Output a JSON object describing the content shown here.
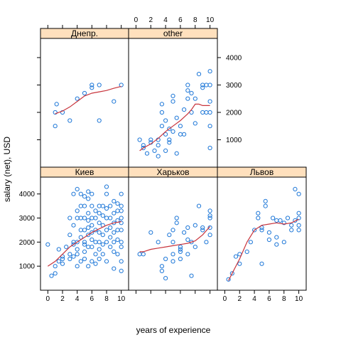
{
  "chart_data": {
    "type": "scatter",
    "layout": "lattice trellis, 3 columns x 2 rows",
    "xlabel": "years of experience",
    "ylabel": "salary (net), USD",
    "xlim": [
      -1,
      11
    ],
    "ylim": [
      0,
      4700
    ],
    "x_ticks": [
      0,
      2,
      4,
      6,
      8,
      10
    ],
    "y_ticks": [
      1000,
      2000,
      3000,
      4000
    ],
    "colors": {
      "points": "#1f78d8",
      "smooth": "#c8343c",
      "strip": "#ffe0bd"
    },
    "panels": [
      {
        "label": "Днепр.",
        "points": [
          [
            1,
            1500
          ],
          [
            1,
            2000
          ],
          [
            1.2,
            2300
          ],
          [
            2,
            2000
          ],
          [
            3,
            1700
          ],
          [
            4,
            2500
          ],
          [
            5,
            2700
          ],
          [
            6,
            2900
          ],
          [
            6,
            3000
          ],
          [
            7,
            3000
          ],
          [
            7,
            1700
          ],
          [
            9,
            2400
          ],
          [
            10,
            3000
          ]
        ],
        "smooth": [
          [
            1,
            1950
          ],
          [
            2,
            2050
          ],
          [
            3,
            2200
          ],
          [
            4,
            2400
          ],
          [
            5,
            2600
          ],
          [
            6,
            2700
          ],
          [
            7,
            2750
          ],
          [
            8,
            2800
          ],
          [
            9,
            2880
          ],
          [
            10,
            2950
          ]
        ]
      },
      {
        "label": "other",
        "points": [
          [
            0.5,
            1000
          ],
          [
            1,
            700
          ],
          [
            1,
            800
          ],
          [
            1.5,
            500
          ],
          [
            2,
            900
          ],
          [
            2,
            1000
          ],
          [
            2.5,
            600
          ],
          [
            3,
            400
          ],
          [
            3,
            800
          ],
          [
            3,
            1000
          ],
          [
            3.5,
            1500
          ],
          [
            3.5,
            2000
          ],
          [
            3.5,
            2300
          ],
          [
            4,
            600
          ],
          [
            4,
            1200
          ],
          [
            4,
            1700
          ],
          [
            4.5,
            900
          ],
          [
            4.5,
            1000
          ],
          [
            4.5,
            1400
          ],
          [
            5,
            1300
          ],
          [
            5,
            2600
          ],
          [
            5,
            2400
          ],
          [
            5.5,
            500
          ],
          [
            5.5,
            1800
          ],
          [
            6,
            1500
          ],
          [
            6,
            1200
          ],
          [
            6.5,
            1200
          ],
          [
            6.5,
            2100
          ],
          [
            7,
            2500
          ],
          [
            7,
            2800
          ],
          [
            7,
            3000
          ],
          [
            7.5,
            2000
          ],
          [
            7.5,
            2700
          ],
          [
            8,
            1600
          ],
          [
            8,
            2500
          ],
          [
            8.5,
            3400
          ],
          [
            9,
            3000
          ],
          [
            9,
            2900
          ],
          [
            9,
            2000
          ],
          [
            9.5,
            3000
          ],
          [
            9.5,
            2000
          ],
          [
            10,
            3500
          ],
          [
            10,
            3000
          ],
          [
            10,
            2400
          ],
          [
            10,
            2000
          ],
          [
            10,
            1500
          ],
          [
            10,
            700
          ]
        ],
        "smooth": [
          [
            0.5,
            600
          ],
          [
            1,
            700
          ],
          [
            2,
            850
          ],
          [
            3,
            1050
          ],
          [
            4,
            1300
          ],
          [
            5,
            1500
          ],
          [
            6,
            1700
          ],
          [
            7,
            1950
          ],
          [
            7.5,
            2100
          ],
          [
            8,
            2300
          ],
          [
            8.5,
            2300
          ],
          [
            9,
            2250
          ],
          [
            10,
            2250
          ]
        ]
      },
      {
        "label": "Киев",
        "points": [
          [
            0,
            1900
          ],
          [
            0.5,
            600
          ],
          [
            1,
            1000
          ],
          [
            1,
            700
          ],
          [
            1.5,
            1200
          ],
          [
            1.5,
            1700
          ],
          [
            2,
            1100
          ],
          [
            2,
            1300
          ],
          [
            2,
            1400
          ],
          [
            2.5,
            1800
          ],
          [
            3,
            1500
          ],
          [
            3,
            1300
          ],
          [
            3,
            2300
          ],
          [
            3,
            3000
          ],
          [
            3.5,
            2000
          ],
          [
            3.5,
            1400
          ],
          [
            3.5,
            1900
          ],
          [
            3.5,
            2700
          ],
          [
            3.5,
            4000
          ],
          [
            4,
            2000
          ],
          [
            4,
            1000
          ],
          [
            4,
            1500
          ],
          [
            4,
            4200
          ],
          [
            4,
            3000
          ],
          [
            4,
            3300
          ],
          [
            4,
            1700
          ],
          [
            4.5,
            3500
          ],
          [
            4.5,
            2200
          ],
          [
            4.5,
            2500
          ],
          [
            4.5,
            3000
          ],
          [
            4.5,
            1200
          ],
          [
            4.5,
            4000
          ],
          [
            5,
            1300
          ],
          [
            5,
            1600
          ],
          [
            5,
            2000
          ],
          [
            5,
            2500
          ],
          [
            5,
            3000
          ],
          [
            5,
            3500
          ],
          [
            5,
            3900
          ],
          [
            5,
            1900
          ],
          [
            5.5,
            1800
          ],
          [
            5.5,
            2300
          ],
          [
            5.5,
            2600
          ],
          [
            5.5,
            2900
          ],
          [
            5.5,
            3200
          ],
          [
            5.5,
            3800
          ],
          [
            5.5,
            4100
          ],
          [
            5.5,
            1000
          ],
          [
            6,
            1200
          ],
          [
            6,
            1800
          ],
          [
            6,
            2100
          ],
          [
            6,
            2400
          ],
          [
            6,
            2700
          ],
          [
            6,
            3000
          ],
          [
            6,
            3500
          ],
          [
            6,
            4000
          ],
          [
            6.5,
            1500
          ],
          [
            6.5,
            2000
          ],
          [
            6.5,
            2500
          ],
          [
            6.5,
            3000
          ],
          [
            6.5,
            3300
          ],
          [
            6.5,
            1100
          ],
          [
            7,
            2000
          ],
          [
            7,
            2400
          ],
          [
            7,
            2800
          ],
          [
            7,
            3200
          ],
          [
            7,
            3500
          ],
          [
            7,
            1300
          ],
          [
            7,
            1700
          ],
          [
            7.5,
            1900
          ],
          [
            7.5,
            2300
          ],
          [
            7.5,
            2700
          ],
          [
            7.5,
            3100
          ],
          [
            7.5,
            3500
          ],
          [
            7.5,
            1500
          ],
          [
            8,
            2000
          ],
          [
            8,
            2500
          ],
          [
            8,
            3000
          ],
          [
            8,
            3400
          ],
          [
            8,
            4000
          ],
          [
            8,
            4300
          ],
          [
            8,
            1200
          ],
          [
            8.5,
            2200
          ],
          [
            8.5,
            2600
          ],
          [
            8.5,
            3000
          ],
          [
            8.5,
            3500
          ],
          [
            8.5,
            1800
          ],
          [
            9,
            2000
          ],
          [
            9,
            2400
          ],
          [
            9,
            2800
          ],
          [
            9,
            3200
          ],
          [
            9,
            3700
          ],
          [
            9,
            1600
          ],
          [
            9,
            900
          ],
          [
            9.5,
            2500
          ],
          [
            9.5,
            2900
          ],
          [
            9.5,
            3300
          ],
          [
            9.5,
            3600
          ],
          [
            9.5,
            2100
          ],
          [
            9.5,
            1500
          ],
          [
            10,
            2000
          ],
          [
            10,
            2500
          ],
          [
            10,
            3000
          ],
          [
            10,
            3300
          ],
          [
            10,
            3500
          ],
          [
            10,
            4000
          ],
          [
            10,
            1800
          ],
          [
            10,
            1200
          ],
          [
            10,
            800
          ],
          [
            10,
            2800
          ]
        ],
        "smooth": [
          [
            0,
            1000
          ],
          [
            1,
            1200
          ],
          [
            2,
            1500
          ],
          [
            3,
            1800
          ],
          [
            4,
            2000
          ],
          [
            5,
            2200
          ],
          [
            6,
            2400
          ],
          [
            7,
            2550
          ],
          [
            8,
            2700
          ],
          [
            9,
            2800
          ],
          [
            10,
            2850
          ]
        ]
      },
      {
        "label": "Харьков",
        "points": [
          [
            0.5,
            1500
          ],
          [
            1,
            1500
          ],
          [
            2,
            2400
          ],
          [
            3,
            2000
          ],
          [
            3.5,
            1000
          ],
          [
            3.5,
            800
          ],
          [
            4,
            500
          ],
          [
            4,
            1300
          ],
          [
            4.5,
            2300
          ],
          [
            5,
            1500
          ],
          [
            5,
            2000
          ],
          [
            5,
            2500
          ],
          [
            5,
            1200
          ],
          [
            5.5,
            3000
          ],
          [
            5.5,
            2800
          ],
          [
            6,
            1700
          ],
          [
            6,
            1300
          ],
          [
            6,
            1600
          ],
          [
            6,
            1800
          ],
          [
            6.5,
            2400
          ],
          [
            7,
            2600
          ],
          [
            7,
            2100
          ],
          [
            7,
            1500
          ],
          [
            7.5,
            600
          ],
          [
            7.5,
            2000
          ],
          [
            8,
            1800
          ],
          [
            8,
            2700
          ],
          [
            8.5,
            3500
          ],
          [
            9,
            2600
          ],
          [
            9,
            2500
          ],
          [
            9.5,
            2000
          ],
          [
            10,
            3300
          ],
          [
            10,
            3000
          ],
          [
            10,
            3100
          ],
          [
            10,
            2600
          ],
          [
            10,
            2300
          ]
        ],
        "smooth": [
          [
            0.5,
            1600
          ],
          [
            1,
            1600
          ],
          [
            2,
            1700
          ],
          [
            3,
            1750
          ],
          [
            4,
            1800
          ],
          [
            5,
            1850
          ],
          [
            6,
            1900
          ],
          [
            7,
            1950
          ],
          [
            8,
            2050
          ],
          [
            9,
            2300
          ],
          [
            10,
            2650
          ]
        ]
      },
      {
        "label": "Львов",
        "points": [
          [
            0.5,
            450
          ],
          [
            1,
            700
          ],
          [
            1.5,
            1400
          ],
          [
            2,
            1500
          ],
          [
            2,
            1100
          ],
          [
            3,
            1600
          ],
          [
            3.5,
            2000
          ],
          [
            4,
            2500
          ],
          [
            4.5,
            3200
          ],
          [
            4.5,
            3000
          ],
          [
            5,
            1100
          ],
          [
            5,
            2600
          ],
          [
            5,
            2500
          ],
          [
            5.5,
            3700
          ],
          [
            5.5,
            3500
          ],
          [
            6,
            2400
          ],
          [
            6,
            2100
          ],
          [
            6.5,
            3000
          ],
          [
            7,
            2900
          ],
          [
            7,
            1900
          ],
          [
            7,
            2200
          ],
          [
            7.5,
            2900
          ],
          [
            8,
            2800
          ],
          [
            8,
            2000
          ],
          [
            8.5,
            3000
          ],
          [
            9,
            2700
          ],
          [
            9,
            2500
          ],
          [
            9.5,
            2900
          ],
          [
            9.5,
            4200
          ],
          [
            10,
            4000
          ],
          [
            10,
            3000
          ],
          [
            10,
            2700
          ],
          [
            10,
            3200
          ],
          [
            10,
            2500
          ]
        ],
        "smooth": [
          [
            0.5,
            400
          ],
          [
            1,
            700
          ],
          [
            2,
            1300
          ],
          [
            3,
            2000
          ],
          [
            4,
            2500
          ],
          [
            5,
            2700
          ],
          [
            6,
            2750
          ],
          [
            7,
            2800
          ],
          [
            8,
            2750
          ],
          [
            9,
            2800
          ],
          [
            10,
            2950
          ]
        ]
      }
    ]
  }
}
